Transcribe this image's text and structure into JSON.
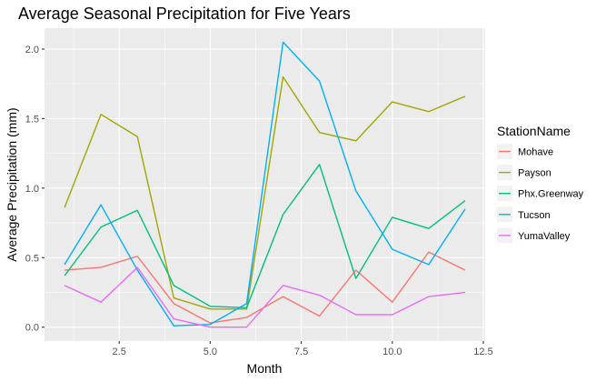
{
  "chart_data": {
    "type": "line",
    "title": "Average Seasonal Precipitation for Five Years",
    "xlabel": "Month",
    "ylabel": "Average Precipitation (mm)",
    "xlim": [
      0.45,
      12.55
    ],
    "ylim": [
      -0.1,
      2.15
    ],
    "x_ticks": [
      2.5,
      5.0,
      7.5,
      10.0,
      12.5
    ],
    "x_tick_labels": [
      "2.5",
      "5.0",
      "7.5",
      "10.0",
      "12.5"
    ],
    "y_ticks": [
      0.0,
      0.5,
      1.0,
      1.5,
      2.0
    ],
    "y_tick_labels": [
      "0.0",
      "0.5",
      "1.0",
      "1.5",
      "2.0"
    ],
    "grid": true,
    "legend_title": "StationName",
    "legend_position": "right",
    "x": [
      1,
      2,
      3,
      4,
      5,
      6,
      7,
      8,
      9,
      10,
      11,
      12
    ],
    "series": [
      {
        "name": "Mohave",
        "color": "#F8766D",
        "values": [
          0.41,
          0.43,
          0.51,
          0.17,
          0.03,
          0.07,
          0.22,
          0.08,
          0.41,
          0.18,
          0.54,
          0.41
        ]
      },
      {
        "name": "Payson",
        "color": "#A3A500",
        "values": [
          0.86,
          1.53,
          1.37,
          0.21,
          0.13,
          0.13,
          1.8,
          1.4,
          1.34,
          1.62,
          1.55,
          1.66
        ]
      },
      {
        "name": "Phx.Greenway",
        "color": "#00BF7D",
        "values": [
          0.37,
          0.72,
          0.84,
          0.3,
          0.15,
          0.14,
          0.81,
          1.17,
          0.35,
          0.79,
          0.71,
          0.91
        ]
      },
      {
        "name": "Tucson",
        "color": "#00B0F6",
        "values": [
          0.45,
          0.88,
          0.41,
          0.01,
          0.02,
          0.17,
          2.05,
          1.77,
          0.98,
          0.56,
          0.45,
          0.85
        ]
      },
      {
        "name": "YumaValley",
        "color": "#E76BF3",
        "values": [
          0.3,
          0.18,
          0.43,
          0.06,
          0.0,
          0.0,
          0.3,
          0.23,
          0.09,
          0.09,
          0.22,
          0.25
        ]
      }
    ]
  }
}
